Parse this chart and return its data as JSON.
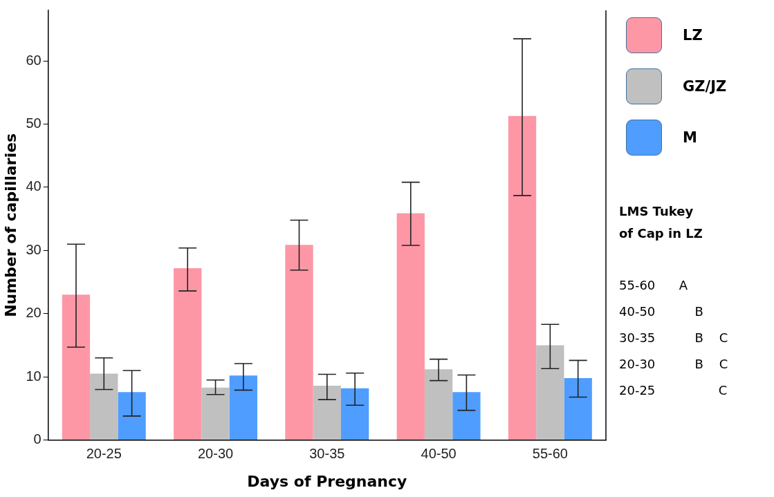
{
  "chart_data": {
    "type": "bar",
    "xlabel": "Days of Pregnancy",
    "ylabel": "Number of capillaries",
    "categories": [
      "20-25",
      "20-30",
      "30-35",
      "40-50",
      "55-60"
    ],
    "series": [
      {
        "name": "LZ",
        "color": "#fd97a6",
        "values": [
          23.0,
          27.2,
          30.9,
          35.9,
          51.3
        ],
        "errors": [
          [
            14.7,
            31.0
          ],
          [
            23.6,
            30.4
          ],
          [
            26.9,
            34.8
          ],
          [
            30.8,
            40.8
          ],
          [
            38.7,
            63.5
          ]
        ]
      },
      {
        "name": "GZ/JZ",
        "color": "#c0c0c0",
        "values": [
          10.5,
          8.3,
          8.6,
          11.2,
          15.0
        ],
        "errors": [
          [
            8.0,
            13.0
          ],
          [
            7.2,
            9.5
          ],
          [
            6.4,
            10.4
          ],
          [
            9.4,
            12.8
          ],
          [
            11.3,
            18.3
          ]
        ]
      },
      {
        "name": "M",
        "color": "#4f9dfe",
        "values": [
          7.6,
          10.2,
          8.2,
          7.6,
          9.8
        ],
        "errors": [
          [
            3.8,
            11.0
          ],
          [
            7.9,
            12.1
          ],
          [
            5.5,
            10.6
          ],
          [
            4.7,
            10.3
          ],
          [
            6.8,
            12.6
          ]
        ]
      }
    ],
    "ylim": [
      0,
      68
    ],
    "yticks": [
      0,
      10,
      20,
      30,
      40,
      50,
      60
    ],
    "grid": false,
    "legend": "top right",
    "annotations": [
      "LMS Tukey of Cap in LZ",
      "55-60      A",
      "40-50          B",
      "30-35          B    C",
      "20-30          B    C",
      "20-25                C"
    ]
  }
}
